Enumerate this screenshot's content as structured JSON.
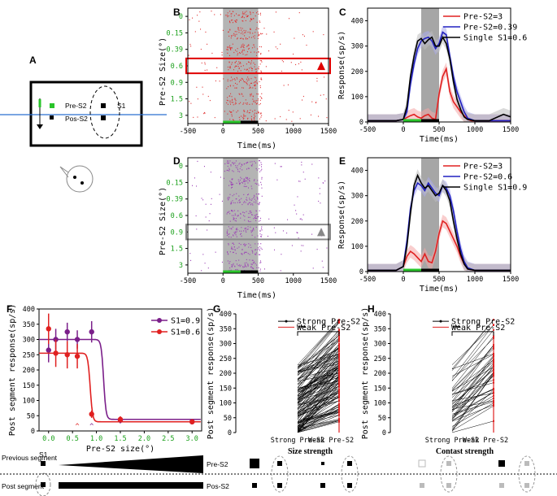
{
  "panels": {
    "A": "A",
    "B": "B",
    "C": "C",
    "D": "D",
    "E": "E",
    "F": "F",
    "G": "G",
    "H": "H"
  },
  "schematic": {
    "pre_label": "Pre-S2",
    "pos_label": "Pos-S2",
    "s1_label": "S1"
  },
  "raster": {
    "B": {
      "ylabel": "Pre-S2 Size(°)",
      "xlabel": "Time(ms)",
      "row_labels": [
        "0",
        "0.15",
        "0.39",
        "0.6",
        "0.9",
        "1.5",
        "3"
      ],
      "highlight_index": 3,
      "color": "#e03030",
      "box_color": "#e00000",
      "marker_color": "#e00000"
    },
    "D": {
      "ylabel": "Pre-S2 Size(°)",
      "xlabel": "Time(ms)",
      "row_labels": [
        "0",
        "0.15",
        "0.39",
        "0.6",
        "0.9",
        "1.5",
        "3"
      ],
      "highlight_index": 4,
      "color": "#9b3fb5",
      "box_color": "#888888",
      "marker_color": "#888888"
    },
    "xticks": [
      "-500",
      "0",
      "500",
      "1000",
      "1500"
    ]
  },
  "chart_data": [
    {
      "panel": "C",
      "type": "line",
      "xlabel": "Time(ms)",
      "ylabel": "Response(sp/s)",
      "xlim": [
        -500,
        1500
      ],
      "ylim": [
        0,
        450
      ],
      "xticks": [
        "-500",
        "0",
        "500",
        "1000",
        "1500"
      ],
      "yticks": [
        "0",
        "100",
        "200",
        "300",
        "400"
      ],
      "legend": [
        "Pre-S2=3",
        "Pre-S2=0.39",
        "Single S1=0.6"
      ],
      "series": [
        {
          "name": "Pre-S2=3",
          "color": "#e02020",
          "x": [
            -500,
            -300,
            -100,
            0,
            100,
            150,
            200,
            250,
            300,
            350,
            400,
            450,
            500,
            550,
            600,
            650,
            700,
            750,
            800,
            850,
            900,
            950,
            1000,
            1200,
            1500
          ],
          "values": [
            5,
            5,
            5,
            10,
            25,
            30,
            20,
            15,
            25,
            30,
            15,
            10,
            110,
            180,
            210,
            120,
            80,
            60,
            40,
            25,
            10,
            5,
            5,
            5,
            5
          ]
        },
        {
          "name": "Pre-S2=0.39",
          "color": "#2020c0",
          "x": [
            -500,
            -300,
            -100,
            0,
            50,
            100,
            150,
            200,
            250,
            300,
            350,
            400,
            450,
            500,
            550,
            600,
            650,
            700,
            750,
            800,
            850,
            900,
            1000,
            1200,
            1500
          ],
          "values": [
            5,
            5,
            5,
            10,
            40,
            150,
            230,
            290,
            320,
            330,
            335,
            320,
            290,
            310,
            355,
            345,
            260,
            180,
            120,
            80,
            40,
            15,
            5,
            5,
            5
          ]
        },
        {
          "name": "Single S1=0.6",
          "color": "#000000",
          "x": [
            -500,
            -300,
            -100,
            0,
            50,
            100,
            150,
            200,
            250,
            300,
            350,
            400,
            450,
            500,
            550,
            600,
            650,
            700,
            750,
            800,
            850,
            900,
            1000,
            1200,
            1400,
            1500
          ],
          "values": [
            5,
            5,
            5,
            10,
            60,
            180,
            260,
            320,
            330,
            310,
            325,
            335,
            300,
            300,
            335,
            310,
            250,
            160,
            90,
            50,
            20,
            10,
            5,
            5,
            30,
            20
          ]
        }
      ]
    },
    {
      "panel": "E",
      "type": "line",
      "xlabel": "Time(ms)",
      "ylabel": "Response(sp/s)",
      "xlim": [
        -500,
        1500
      ],
      "ylim": [
        0,
        450
      ],
      "xticks": [
        "-500",
        "0",
        "500",
        "1000",
        "1500"
      ],
      "yticks": [
        "0",
        "100",
        "200",
        "300",
        "400"
      ],
      "legend": [
        "Pre-S2=3",
        "Pre-S2=0.6",
        "Single S1=0.9"
      ],
      "series": [
        {
          "name": "Pre-S2=3",
          "color": "#e02020",
          "x": [
            -500,
            -300,
            -100,
            0,
            50,
            100,
            150,
            200,
            250,
            300,
            350,
            400,
            450,
            500,
            550,
            600,
            650,
            700,
            750,
            800,
            850,
            900,
            1000,
            1200,
            1500
          ],
          "values": [
            5,
            5,
            5,
            20,
            60,
            80,
            70,
            55,
            40,
            70,
            40,
            35,
            80,
            150,
            200,
            190,
            160,
            130,
            100,
            60,
            30,
            10,
            5,
            5,
            5
          ]
        },
        {
          "name": "Pre-S2=0.6",
          "color": "#2020c0",
          "x": [
            -500,
            -300,
            -100,
            0,
            50,
            100,
            150,
            200,
            250,
            300,
            350,
            400,
            450,
            500,
            550,
            600,
            650,
            700,
            750,
            800,
            850,
            900,
            1000,
            1200,
            1500
          ],
          "values": [
            5,
            5,
            5,
            20,
            120,
            250,
            320,
            350,
            340,
            320,
            350,
            330,
            310,
            300,
            340,
            330,
            300,
            240,
            160,
            90,
            40,
            15,
            5,
            5,
            5
          ]
        },
        {
          "name": "Single S1=0.9",
          "color": "#000000",
          "x": [
            -500,
            -300,
            -100,
            0,
            50,
            100,
            150,
            200,
            250,
            300,
            350,
            400,
            450,
            500,
            550,
            600,
            650,
            700,
            750,
            800,
            850,
            900,
            1000,
            1200,
            1500
          ],
          "values": [
            5,
            5,
            5,
            20,
            100,
            230,
            340,
            380,
            350,
            330,
            340,
            320,
            300,
            310,
            340,
            320,
            280,
            200,
            130,
            70,
            30,
            10,
            5,
            5,
            5
          ]
        }
      ]
    },
    {
      "panel": "F",
      "type": "scatter",
      "xlabel": "Pre-S2 size(°)",
      "ylabel": "Post segment response(sp/s)",
      "xlim": [
        -0.2,
        3.2
      ],
      "ylim": [
        0,
        400
      ],
      "xticks": [
        "0.0",
        "0.5",
        "1.0",
        "1.5",
        "2.0",
        "2.5",
        "3.0"
      ],
      "yticks": [
        "0",
        "50",
        "100",
        "150",
        "200",
        "250",
        "300",
        "350",
        "400"
      ],
      "legend": [
        "S1=0.9",
        "S1=0.6"
      ],
      "series": [
        {
          "name": "S1=0.9",
          "color": "#7b1f8a",
          "x": [
            0,
            0.15,
            0.39,
            0.6,
            0.9,
            1.5,
            3.0
          ],
          "values": [
            265,
            300,
            325,
            300,
            325,
            35,
            30
          ],
          "err": [
            40,
            35,
            30,
            30,
            35,
            10,
            5
          ]
        },
        {
          "name": "S1=0.6",
          "color": "#e02020",
          "x": [
            0,
            0.15,
            0.39,
            0.6,
            0.9,
            1.5,
            3.0
          ],
          "values": [
            335,
            255,
            250,
            245,
            55,
            38,
            30
          ],
          "err": [
            50,
            45,
            45,
            40,
            12,
            10,
            5
          ]
        }
      ],
      "markers": [
        "^",
        "^"
      ]
    },
    {
      "panel": "G",
      "type": "line",
      "title": "Size strength",
      "ylabel": "Post segment response(sp/s)",
      "categories": [
        "Strong Pre-S2",
        "Weak Pre-S2"
      ],
      "ylim": [
        0,
        400
      ],
      "yticks": [
        "0",
        "50",
        "100",
        "150",
        "200",
        "250",
        "300",
        "350",
        "400"
      ],
      "legend": [
        "Strong Pre-S2",
        "Weak Pre-S2"
      ],
      "significance": "***"
    },
    {
      "panel": "H",
      "type": "line",
      "title": "Contast strength",
      "ylabel": "Post segment response(sp/s)",
      "categories": [
        "Strong Pre-S2",
        "Weak Pre-S2"
      ],
      "ylim": [
        0,
        400
      ],
      "yticks": [
        "0",
        "50",
        "100",
        "150",
        "200",
        "250",
        "300",
        "350",
        "400"
      ],
      "legend": [
        "Strong Pre-S2",
        "Weak Pre-S2"
      ],
      "significance": "***"
    }
  ],
  "bottom": {
    "previous_label": "Previous segment",
    "post_label": "Post segment",
    "s1": "S1",
    "pre_s2": "Pre-S2",
    "pos_s2": "Pos-S2"
  }
}
